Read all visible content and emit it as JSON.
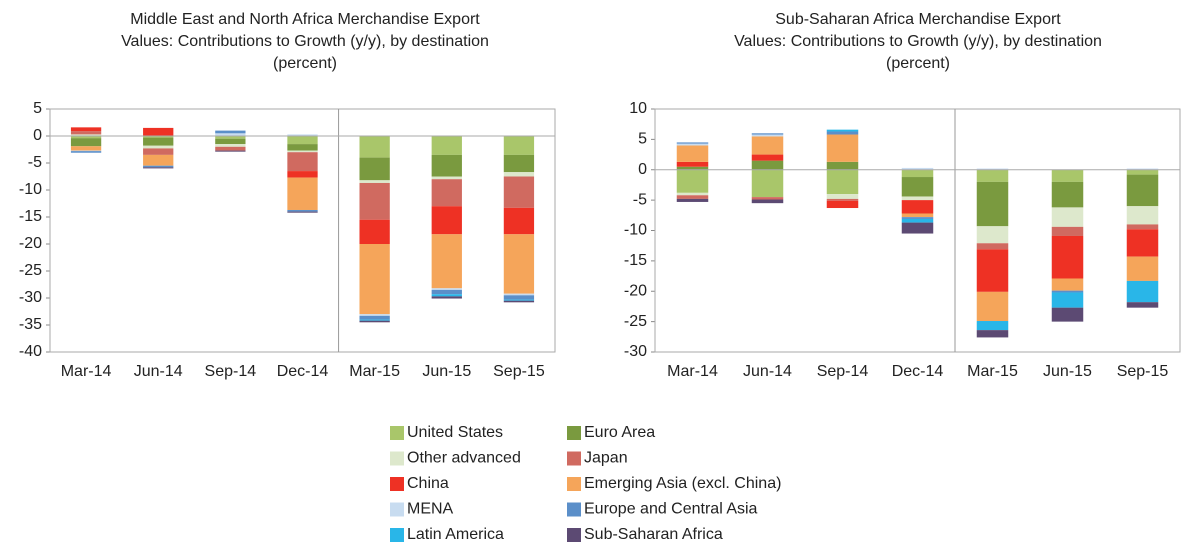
{
  "chart_data": [
    {
      "type": "stacked_bar",
      "title": [
        "Middle East and North Africa Merchandise Export",
        "Values: Contributions to Growth (y/y), by destination",
        "(percent)"
      ],
      "categories": [
        "Mar-14",
        "Jun-14",
        "Sep-14",
        "Dec-14",
        "Mar-15",
        "Jun-15",
        "Sep-15"
      ],
      "ylim": [
        -40,
        5
      ],
      "yticks": [
        5,
        0,
        -5,
        -10,
        -15,
        -20,
        -25,
        -30,
        -35,
        -40
      ],
      "series": [
        {
          "values": [
            -0.4,
            -0.3,
            -0.5,
            -1.5,
            -4,
            -3.5,
            -3.5
          ]
        },
        {
          "values": [
            -1.5,
            -1.5,
            -1,
            -1.2,
            -4.2,
            -4,
            -3.2
          ]
        },
        {
          "values": [
            0.3,
            -0.5,
            -0.5,
            -0.3,
            -0.5,
            -0.5,
            -0.8
          ]
        },
        {
          "values": [
            0.6,
            -1.2,
            -0.7,
            -3.5,
            -6.8,
            -5,
            -5.8
          ]
        },
        {
          "values": [
            0.7,
            1.5,
            0,
            -1.2,
            -4.5,
            -5.2,
            -4.9
          ]
        },
        {
          "values": [
            -0.8,
            -2,
            0,
            -6,
            -13,
            -10,
            -11
          ]
        },
        {
          "values": [
            -0.1,
            0,
            0.5,
            0.3,
            -0.3,
            -0.3,
            -0.3
          ]
        },
        {
          "values": [
            -0.3,
            -0.3,
            0.5,
            -0.3,
            -0.7,
            -0.8,
            -0.8
          ]
        },
        {
          "values": [
            0,
            0,
            0,
            0,
            -0.2,
            -0.4,
            -0.2
          ]
        },
        {
          "values": [
            0,
            -0.2,
            -0.2,
            -0.2,
            -0.3,
            -0.4,
            -0.3
          ]
        }
      ]
    },
    {
      "type": "stacked_bar",
      "title": [
        "Sub-Saharan Africa Merchandise Export",
        "Values: Contributions to Growth (y/y), by destination",
        "(percent)"
      ],
      "categories": [
        "Mar-14",
        "Jun-14",
        "Sep-14",
        "Dec-14",
        "Mar-15",
        "Jun-15",
        "Sep-15"
      ],
      "ylim": [
        -30,
        10
      ],
      "yticks": [
        10,
        5,
        0,
        -5,
        -10,
        -15,
        -20,
        -25,
        -30
      ],
      "series": [
        {
          "values": [
            -3.8,
            -4.5,
            -4,
            -1.2,
            -2,
            -2,
            -0.8
          ]
        },
        {
          "values": [
            0.5,
            1.5,
            1.3,
            -3.2,
            -7.3,
            -4.2,
            -5.2
          ]
        },
        {
          "values": [
            -0.4,
            0,
            -0.8,
            -0.6,
            -2.8,
            -3.2,
            -3
          ]
        },
        {
          "values": [
            -0.6,
            -0.4,
            -0.3,
            0,
            -1,
            -1.5,
            -0.8
          ]
        },
        {
          "values": [
            0.8,
            1,
            -1.2,
            -2.2,
            -7,
            -7,
            -4.5
          ]
        },
        {
          "values": [
            2.7,
            3,
            4.5,
            -0.6,
            -4.8,
            -2,
            -4
          ]
        },
        {
          "values": [
            0.3,
            0.3,
            0,
            0.3,
            0.2,
            0,
            0.2
          ]
        },
        {
          "values": [
            0.2,
            0.2,
            0.5,
            -0.3,
            0,
            -0.3,
            0
          ]
        },
        {
          "values": [
            0,
            0,
            0.3,
            -0.6,
            -1.5,
            -2.5,
            -3.5
          ]
        },
        {
          "values": [
            -0.5,
            -0.6,
            0,
            -1.8,
            -1.2,
            -2.3,
            -0.9
          ]
        }
      ]
    }
  ],
  "legend": [
    {
      "name": "United States",
      "color": "#a9c66a"
    },
    {
      "name": "Euro Area",
      "color": "#7a9a3f"
    },
    {
      "name": "Other advanced",
      "color": "#dde8cc"
    },
    {
      "name": "Japan",
      "color": "#d06a60"
    },
    {
      "name": "China",
      "color": "#ee3124"
    },
    {
      "name": "Emerging Asia (excl. China)",
      "color": "#f5a55a"
    },
    {
      "name": "MENA",
      "color": "#c8dcf0"
    },
    {
      "name": "Europe and Central Asia",
      "color": "#5b8fc9"
    },
    {
      "name": "Latin America",
      "color": "#29b6e8"
    },
    {
      "name": "Sub-Saharan Africa",
      "color": "#5c4a73"
    }
  ]
}
